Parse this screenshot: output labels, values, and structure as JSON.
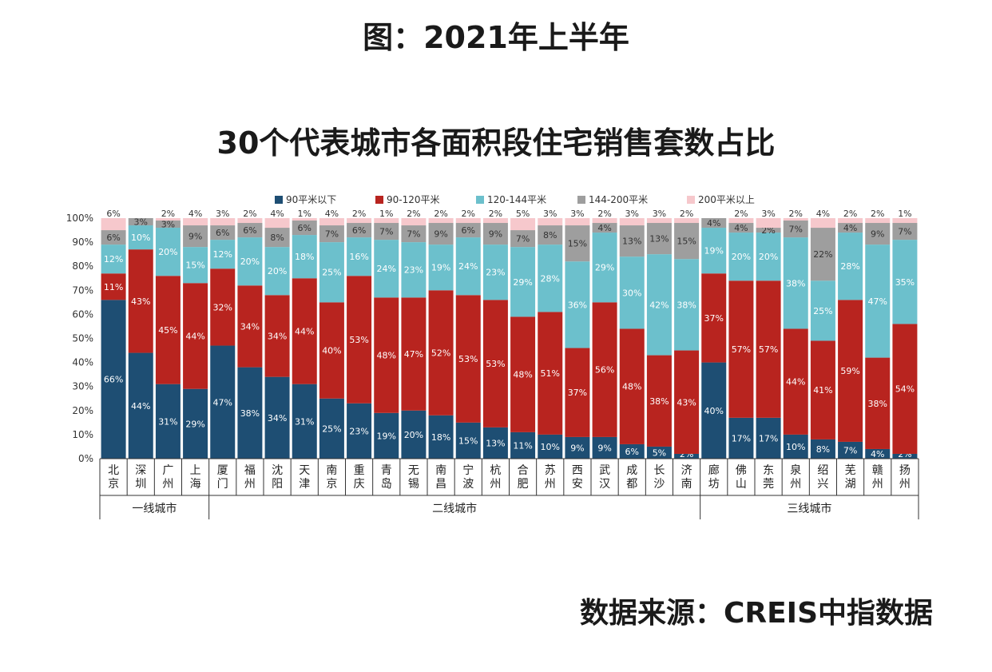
{
  "header": {
    "title": "图：2021年上半年"
  },
  "chart_title": "30个代表城市各面积段住宅销售套数占比",
  "source": "数据来源：CREIS中指数据",
  "colors": {
    "seg1": "#1e4e73",
    "seg2": "#b8241f",
    "seg3": "#6cc0cc",
    "seg4": "#9e9e9e",
    "seg5": "#f6c8cc"
  },
  "chart_data": {
    "type": "bar",
    "stacked": true,
    "ylim": [
      0,
      100
    ],
    "yticks": [
      "0%",
      "10%",
      "20%",
      "30%",
      "40%",
      "50%",
      "60%",
      "70%",
      "80%",
      "90%",
      "100%"
    ],
    "categories": [
      "北京",
      "深圳",
      "广州",
      "上海",
      "厦门",
      "福州",
      "沈阳",
      "天津",
      "南京",
      "重庆",
      "青岛",
      "无锡",
      "南昌",
      "宁波",
      "杭州",
      "合肥",
      "苏州",
      "西安",
      "武汉",
      "成都",
      "长沙",
      "济南",
      "廊坊",
      "佛山",
      "东莞",
      "泉州",
      "绍兴",
      "芜湖",
      "赣州",
      "扬州"
    ],
    "groups": [
      {
        "label": "一线城市",
        "count": 4
      },
      {
        "label": "二线城市",
        "count": 18
      },
      {
        "label": "三线城市",
        "count": 8
      }
    ],
    "legend_position": "top",
    "series": [
      {
        "name": "90平米以下",
        "values": [
          66,
          44,
          31,
          29,
          47,
          38,
          34,
          31,
          25,
          23,
          19,
          20,
          18,
          15,
          13,
          11,
          10,
          9,
          9,
          6,
          5,
          2,
          40,
          17,
          17,
          10,
          8,
          7,
          4,
          2
        ]
      },
      {
        "name": "90-120平米",
        "values": [
          11,
          43,
          45,
          44,
          32,
          34,
          34,
          44,
          40,
          53,
          48,
          47,
          52,
          53,
          53,
          48,
          51,
          37,
          56,
          48,
          38,
          43,
          37,
          57,
          57,
          44,
          41,
          59,
          38,
          54
        ]
      },
      {
        "name": "120-144平米",
        "values": [
          12,
          10,
          20,
          15,
          12,
          20,
          20,
          18,
          25,
          16,
          24,
          23,
          19,
          24,
          23,
          29,
          28,
          36,
          29,
          30,
          42,
          38,
          19,
          20,
          20,
          38,
          25,
          28,
          47,
          35
        ]
      },
      {
        "name": "144-200平米",
        "values": [
          6,
          3,
          3,
          9,
          6,
          6,
          8,
          6,
          7,
          6,
          7,
          7,
          9,
          6,
          9,
          7,
          8,
          15,
          4,
          13,
          13,
          15,
          4,
          4,
          2,
          7,
          22,
          4,
          9,
          7
        ]
      },
      {
        "name": "200平米以上",
        "values": [
          6,
          null,
          2,
          4,
          3,
          2,
          4,
          1,
          4,
          2,
          1,
          2,
          2,
          2,
          2,
          5,
          3,
          3,
          2,
          3,
          3,
          2,
          null,
          2,
          3,
          2,
          4,
          2,
          2,
          1
        ]
      }
    ]
  }
}
